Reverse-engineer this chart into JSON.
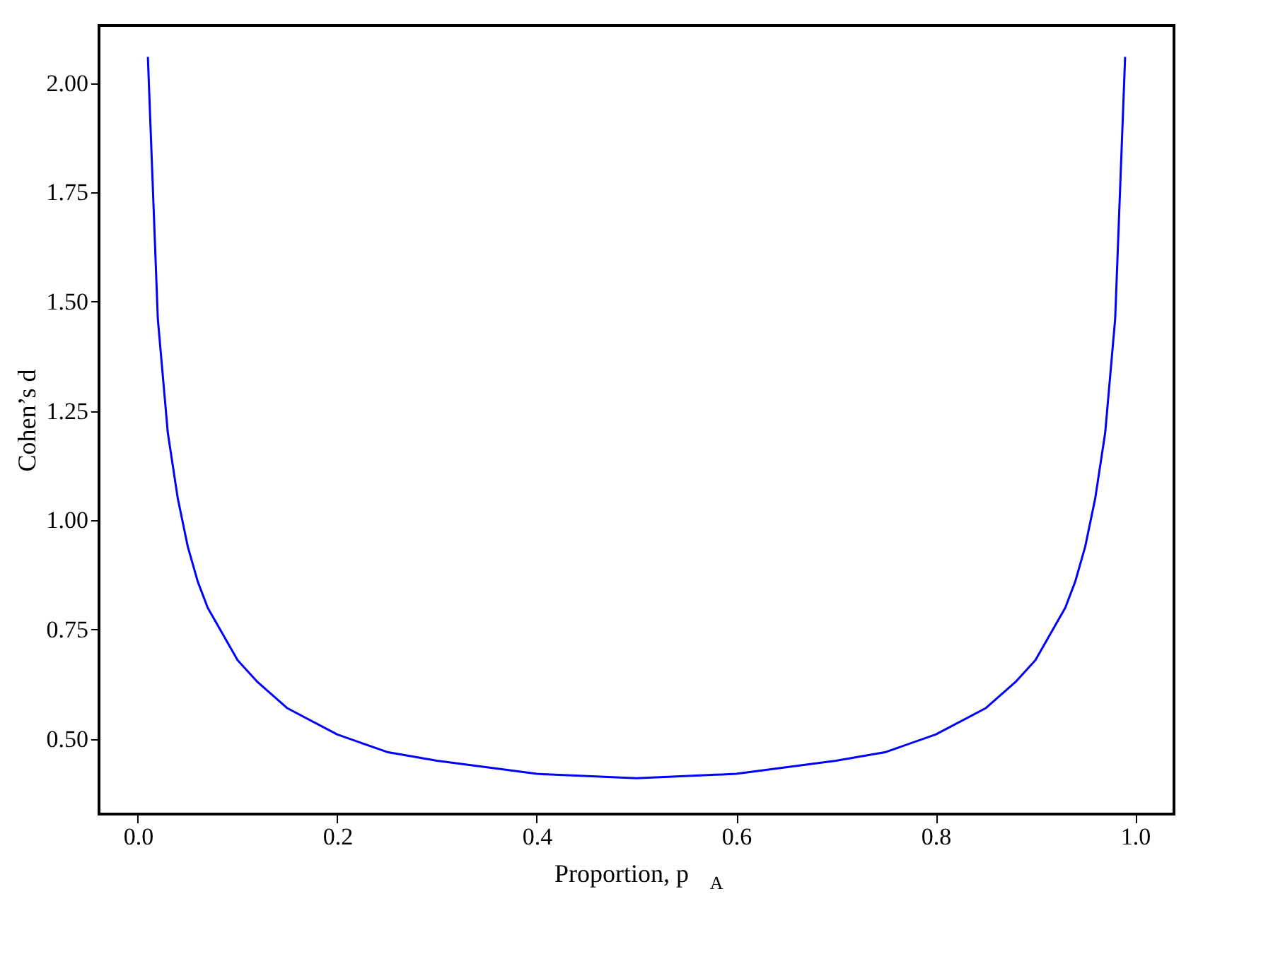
{
  "chart_data": {
    "type": "line",
    "xlabel": "Proportion, p$_{A}$",
    "ylabel": "Cohen’s d",
    "x": [
      0.01,
      0.02,
      0.03,
      0.04,
      0.05,
      0.06,
      0.07,
      0.08,
      0.1,
      0.12,
      0.15,
      0.2,
      0.25,
      0.3,
      0.4,
      0.5,
      0.6,
      0.7,
      0.75,
      0.8,
      0.85,
      0.88,
      0.9,
      0.92,
      0.93,
      0.94,
      0.95,
      0.96,
      0.97,
      0.98,
      0.99
    ],
    "series": [
      {
        "color": "#0000ff",
        "values": [
          2.06,
          1.46,
          1.2,
          1.05,
          0.94,
          0.86,
          0.8,
          0.76,
          0.68,
          0.63,
          0.57,
          0.51,
          0.47,
          0.45,
          0.42,
          0.41,
          0.42,
          0.45,
          0.47,
          0.51,
          0.57,
          0.63,
          0.68,
          0.76,
          0.8,
          0.86,
          0.94,
          1.05,
          1.2,
          1.46,
          2.06
        ]
      }
    ],
    "xlim": [
      -0.039,
      1.039
    ],
    "ylim": [
      0.328,
      2.132
    ],
    "xticks": [
      {
        "value": 0,
        "label": "0.0"
      },
      {
        "value": 0.2,
        "label": "0.2"
      },
      {
        "value": 0.4,
        "label": "0.4"
      },
      {
        "value": 0.6,
        "label": "0.6"
      },
      {
        "value": 0.8,
        "label": "0.8"
      },
      {
        "value": 1,
        "label": "1.0"
      }
    ],
    "yticks": [
      {
        "value": 0.5,
        "label": "0.50"
      },
      {
        "value": 0.75,
        "label": "0.75"
      },
      {
        "value": 1,
        "label": "1.00"
      },
      {
        "value": 1.25,
        "label": "1.25"
      },
      {
        "value": 1.5,
        "label": "1.50"
      },
      {
        "value": 1.75,
        "label": "1.75"
      },
      {
        "value": 2,
        "label": "2.00"
      }
    ],
    "grid": false,
    "marker": "none",
    "line_style": "solid"
  }
}
